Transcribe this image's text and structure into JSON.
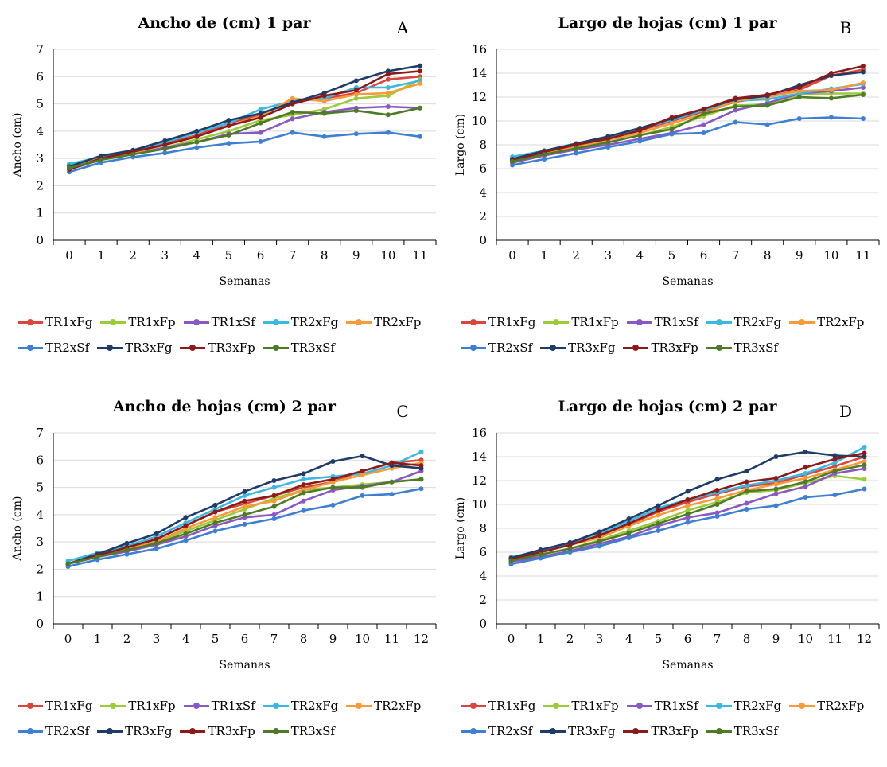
{
  "colors": {
    "TR1xFg": "#d9463e",
    "TR1xFp": "#9bcb3c",
    "TR1xSf": "#8a58c2",
    "TR2xFg": "#3bb8e0",
    "TR2xFp": "#f79a3a",
    "TR2xSf": "#3f7fd2",
    "TR3xFg": "#1f3b68",
    "TR3xFp": "#8b1a1a",
    "TR3xSf": "#4f7a28"
  },
  "chart_data": [
    {
      "id": "A",
      "letter": "A",
      "type": "line",
      "title": "Ancho de (cm) 1 par",
      "xlabel": "Semanas",
      "ylabel": "Ancho (cm)",
      "x": [
        0,
        1,
        2,
        3,
        4,
        5,
        6,
        7,
        8,
        9,
        10,
        11
      ],
      "ylim": [
        0,
        7
      ],
      "yticks": [
        0,
        1,
        2,
        3,
        4,
        5,
        6,
        7
      ],
      "grid": true,
      "legend": "bottom",
      "series": [
        {
          "name": "TR1xFg",
          "values": [
            2.7,
            3.05,
            3.3,
            3.55,
            3.85,
            4.3,
            4.6,
            5.1,
            5.2,
            5.4,
            5.9,
            6.0
          ]
        },
        {
          "name": "TR1xFp",
          "values": [
            2.6,
            2.95,
            3.15,
            3.4,
            3.7,
            4.0,
            4.4,
            4.6,
            4.8,
            5.2,
            5.3,
            5.9
          ]
        },
        {
          "name": "TR1xSf",
          "values": [
            2.6,
            2.95,
            3.15,
            3.4,
            3.6,
            3.9,
            3.95,
            4.45,
            4.7,
            4.85,
            4.9,
            4.85
          ]
        },
        {
          "name": "TR2xFg",
          "values": [
            2.8,
            3.05,
            3.3,
            3.6,
            3.95,
            4.3,
            4.8,
            5.1,
            5.2,
            5.6,
            5.6,
            5.85
          ]
        },
        {
          "name": "TR2xFp",
          "values": [
            2.7,
            3.0,
            3.2,
            3.5,
            3.8,
            4.2,
            4.55,
            5.2,
            5.1,
            5.35,
            5.4,
            5.75
          ]
        },
        {
          "name": "TR2xSf",
          "values": [
            2.5,
            2.85,
            3.05,
            3.2,
            3.4,
            3.55,
            3.62,
            3.95,
            3.8,
            3.9,
            3.95,
            3.8
          ]
        },
        {
          "name": "TR3xFg",
          "values": [
            2.7,
            3.1,
            3.3,
            3.65,
            4.0,
            4.4,
            4.65,
            5.05,
            5.4,
            5.85,
            6.2,
            6.4
          ]
        },
        {
          "name": "TR3xFp",
          "values": [
            2.6,
            3.0,
            3.25,
            3.5,
            3.8,
            4.2,
            4.5,
            5.0,
            5.3,
            5.5,
            6.1,
            6.2
          ]
        },
        {
          "name": "TR3xSf",
          "values": [
            2.65,
            2.95,
            3.15,
            3.35,
            3.6,
            3.85,
            4.3,
            4.7,
            4.65,
            4.75,
            4.6,
            4.85
          ]
        }
      ]
    },
    {
      "id": "B",
      "letter": "B",
      "type": "line",
      "title": "Largo de hojas (cm) 1 par",
      "xlabel": "Semanas",
      "ylabel": "Largo (cm)",
      "x": [
        0,
        1,
        2,
        3,
        4,
        5,
        6,
        7,
        8,
        9,
        10,
        11
      ],
      "ylim": [
        0,
        16
      ],
      "yticks": [
        0,
        2,
        4,
        6,
        8,
        10,
        12,
        14,
        16
      ],
      "grid": true,
      "legend": "bottom",
      "series": [
        {
          "name": "TR1xFg",
          "values": [
            6.8,
            7.4,
            8.0,
            8.5,
            9.2,
            10.0,
            10.8,
            11.6,
            12.0,
            12.6,
            13.8,
            14.3
          ]
        },
        {
          "name": "TR1xFp",
          "values": [
            6.6,
            7.2,
            7.8,
            8.2,
            8.8,
            9.5,
            10.4,
            11.3,
            11.4,
            12.2,
            12.3,
            12.3
          ]
        },
        {
          "name": "TR1xSf",
          "values": [
            6.5,
            7.1,
            7.6,
            8.0,
            8.5,
            9.0,
            9.7,
            10.9,
            11.5,
            12.3,
            12.5,
            12.8
          ]
        },
        {
          "name": "TR2xFg",
          "values": [
            7.0,
            7.5,
            8.1,
            8.6,
            9.3,
            10.1,
            10.9,
            11.7,
            11.8,
            12.3,
            12.7,
            13.1
          ]
        },
        {
          "name": "TR2xFp",
          "values": [
            6.7,
            7.3,
            7.9,
            8.4,
            9.0,
            9.8,
            10.6,
            11.7,
            12.0,
            12.5,
            12.6,
            13.2
          ]
        },
        {
          "name": "TR2xSf",
          "values": [
            6.3,
            6.8,
            7.3,
            7.8,
            8.3,
            8.9,
            9.0,
            9.9,
            9.7,
            10.2,
            10.3,
            10.2
          ]
        },
        {
          "name": "TR3xFg",
          "values": [
            6.8,
            7.5,
            8.1,
            8.7,
            9.4,
            10.2,
            11.0,
            11.8,
            12.1,
            13.0,
            13.8,
            14.1
          ]
        },
        {
          "name": "TR3xFp",
          "values": [
            6.7,
            7.4,
            8.0,
            8.5,
            9.2,
            10.3,
            11.0,
            11.9,
            12.2,
            12.8,
            14.0,
            14.6
          ]
        },
        {
          "name": "TR3xSf",
          "values": [
            6.6,
            7.2,
            7.7,
            8.2,
            8.8,
            9.3,
            10.6,
            11.2,
            11.3,
            12.0,
            11.9,
            12.2
          ]
        }
      ]
    },
    {
      "id": "C",
      "letter": "C",
      "type": "line",
      "title": "Ancho de hojas (cm) 2 par",
      "xlabel": "Semanas",
      "ylabel": "Ancho (cm)",
      "x": [
        0,
        1,
        2,
        3,
        4,
        5,
        6,
        7,
        8,
        9,
        10,
        11,
        12
      ],
      "ylim": [
        0,
        7
      ],
      "yticks": [
        0,
        1,
        2,
        3,
        4,
        5,
        6,
        7
      ],
      "grid": true,
      "legend": "bottom",
      "series": [
        {
          "name": "TR1xFg",
          "values": [
            2.2,
            2.5,
            2.8,
            3.1,
            3.6,
            4.1,
            4.4,
            4.7,
            5.0,
            5.2,
            5.6,
            5.9,
            6.0
          ]
        },
        {
          "name": "TR1xFp",
          "values": [
            2.2,
            2.45,
            2.7,
            3.0,
            3.4,
            3.8,
            4.2,
            4.6,
            4.9,
            5.0,
            5.1,
            5.2,
            5.3
          ]
        },
        {
          "name": "TR1xSf",
          "values": [
            2.2,
            2.45,
            2.65,
            2.9,
            3.2,
            3.6,
            3.9,
            4.0,
            4.5,
            4.9,
            5.05,
            5.2,
            5.6
          ]
        },
        {
          "name": "TR2xFg",
          "values": [
            2.3,
            2.6,
            2.85,
            3.2,
            3.7,
            4.2,
            4.7,
            5.0,
            5.3,
            5.4,
            5.5,
            5.8,
            6.3
          ]
        },
        {
          "name": "TR2xFp",
          "values": [
            2.2,
            2.5,
            2.75,
            3.0,
            3.5,
            3.9,
            4.3,
            4.5,
            4.9,
            5.2,
            5.45,
            5.7,
            5.9
          ]
        },
        {
          "name": "TR2xSf",
          "values": [
            2.1,
            2.35,
            2.55,
            2.75,
            3.05,
            3.4,
            3.65,
            3.85,
            4.15,
            4.35,
            4.7,
            4.75,
            4.95
          ]
        },
        {
          "name": "TR3xFg",
          "values": [
            2.2,
            2.55,
            2.95,
            3.3,
            3.9,
            4.35,
            4.85,
            5.25,
            5.5,
            5.95,
            6.15,
            5.8,
            5.7
          ]
        },
        {
          "name": "TR3xFp",
          "values": [
            2.2,
            2.5,
            2.8,
            3.1,
            3.6,
            4.1,
            4.5,
            4.7,
            5.1,
            5.3,
            5.6,
            5.9,
            5.8
          ]
        },
        {
          "name": "TR3xSf",
          "values": [
            2.2,
            2.45,
            2.7,
            2.95,
            3.3,
            3.7,
            4.0,
            4.3,
            4.8,
            5.0,
            5.0,
            5.2,
            5.3
          ]
        }
      ]
    },
    {
      "id": "D",
      "letter": "D",
      "type": "line",
      "title": "Largo de hojas (cm) 2 par",
      "xlabel": "Semanas",
      "ylabel": "Largo (cm)",
      "x": [
        0,
        1,
        2,
        3,
        4,
        5,
        6,
        7,
        8,
        9,
        10,
        11,
        12
      ],
      "ylim": [
        0,
        16
      ],
      "yticks": [
        0,
        2,
        4,
        6,
        8,
        10,
        12,
        14,
        16
      ],
      "grid": true,
      "legend": "bottom",
      "series": [
        {
          "name": "TR1xFg",
          "values": [
            5.5,
            6.0,
            6.8,
            7.3,
            8.3,
            9.4,
            10.2,
            10.9,
            11.5,
            11.8,
            12.5,
            13.2,
            14.0
          ]
        },
        {
          "name": "TR1xFp",
          "values": [
            5.3,
            5.8,
            6.3,
            7.0,
            7.8,
            8.6,
            9.5,
            10.2,
            11.0,
            11.2,
            11.8,
            12.4,
            12.1
          ]
        },
        {
          "name": "TR1xSf",
          "values": [
            5.2,
            5.6,
            6.1,
            6.7,
            7.3,
            8.2,
            8.9,
            9.3,
            10.1,
            10.9,
            11.5,
            12.6,
            13.0
          ]
        },
        {
          "name": "TR2xFg",
          "values": [
            5.6,
            6.1,
            6.8,
            7.6,
            8.6,
            9.7,
            10.4,
            11.0,
            11.6,
            12.0,
            12.6,
            13.5,
            14.8
          ]
        },
        {
          "name": "TR2xFp",
          "values": [
            5.5,
            6.0,
            6.6,
            7.2,
            8.2,
            9.1,
            9.9,
            10.5,
            11.2,
            11.7,
            12.2,
            12.9,
            13.6
          ]
        },
        {
          "name": "TR2xSf",
          "values": [
            5.0,
            5.5,
            6.0,
            6.5,
            7.2,
            7.8,
            8.5,
            9.0,
            9.6,
            9.9,
            10.6,
            10.8,
            11.3
          ]
        },
        {
          "name": "TR3xFg",
          "values": [
            5.5,
            6.2,
            6.8,
            7.7,
            8.8,
            9.9,
            11.1,
            12.1,
            12.8,
            14.0,
            14.4,
            14.1,
            14.0
          ]
        },
        {
          "name": "TR3xFp",
          "values": [
            5.4,
            6.0,
            6.6,
            7.4,
            8.4,
            9.5,
            10.4,
            11.2,
            11.9,
            12.2,
            13.1,
            13.8,
            14.3
          ]
        },
        {
          "name": "TR3xSf",
          "values": [
            5.3,
            5.8,
            6.3,
            6.9,
            7.6,
            8.4,
            9.2,
            10.0,
            11.1,
            11.3,
            11.9,
            12.8,
            13.3
          ]
        }
      ]
    }
  ]
}
